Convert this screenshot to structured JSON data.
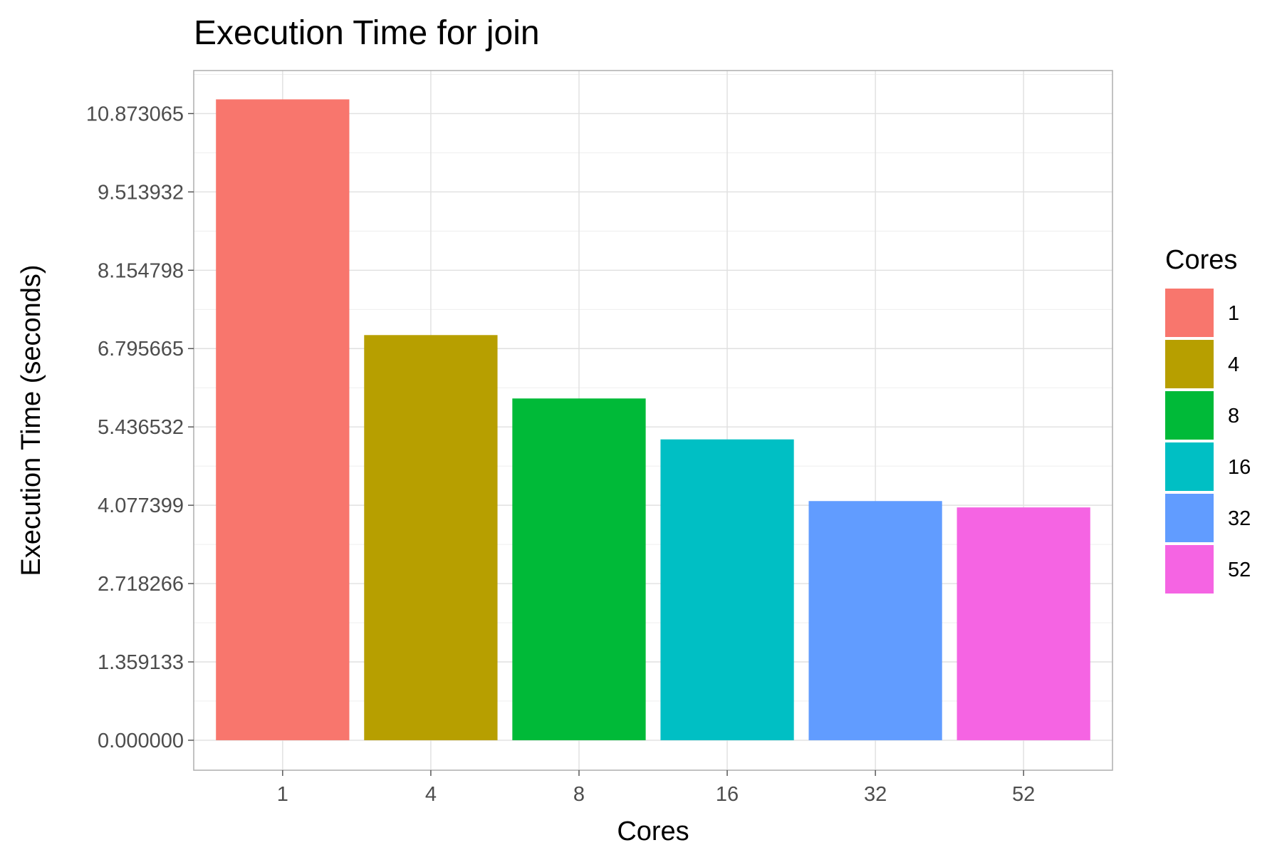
{
  "chart_data": {
    "type": "bar",
    "title": "Execution Time for join",
    "xlabel": "Cores",
    "ylabel": "Execution Time (seconds)",
    "categories": [
      "1",
      "4",
      "8",
      "16",
      "32",
      "52"
    ],
    "values": [
      11.12,
      7.03,
      5.93,
      5.22,
      4.15,
      4.04
    ],
    "colors": [
      "#F8766D",
      "#B79F00",
      "#00BA38",
      "#00BFC4",
      "#619CFF",
      "#F564E3"
    ],
    "ylim": [
      -0.52,
      11.62
    ],
    "yticks": [
      0.0,
      1.359133,
      2.718266,
      4.077399,
      5.436532,
      6.795665,
      8.154798,
      9.513932,
      10.873065
    ],
    "ytick_labels": [
      "0.000000",
      "1.359133",
      "2.718266",
      "4.077399",
      "5.436532",
      "6.795665",
      "8.154798",
      "9.513932",
      "10.873065"
    ],
    "grid": true,
    "legend": {
      "title": "Cores",
      "position": "right",
      "entries": [
        "1",
        "4",
        "8",
        "16",
        "32",
        "52"
      ]
    }
  }
}
